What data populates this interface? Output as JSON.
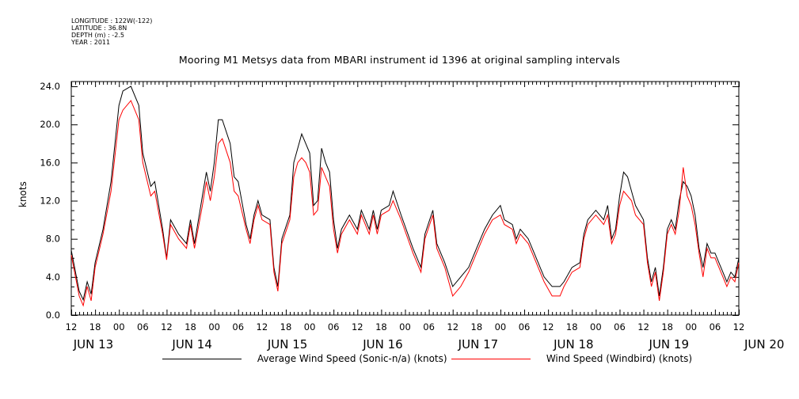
{
  "header": {
    "longitude": "LONGITUDE : 122W(-122)",
    "latitude": "LATITUDE : 36.8N",
    "depth": "DEPTH (m) : -2.5",
    "year": "YEAR : 2011"
  },
  "chart_data": {
    "type": "line",
    "title": "Mooring M1 Metsys data from MBARI instrument id 1396 at original sampling intervals",
    "xlabel": "",
    "ylabel": "knots",
    "ylim": [
      0,
      24.5
    ],
    "yticks": [
      0.0,
      4.0,
      8.0,
      12.0,
      16.0,
      20.0,
      24.0
    ],
    "ytick_labels": [
      "0.0",
      "4.0",
      "8.0",
      "12.0",
      "16.0",
      "20.0",
      "24.0"
    ],
    "xlim_hours": [
      0,
      168
    ],
    "xtick_labels": [
      "12",
      "18",
      "00",
      "06",
      "12",
      "18",
      "00",
      "06",
      "12",
      "18",
      "00",
      "06",
      "12",
      "18",
      "00",
      "06",
      "12",
      "18",
      "00",
      "06",
      "12",
      "18",
      "00",
      "06",
      "12",
      "18",
      "00",
      "06",
      "12"
    ],
    "date_labels": [
      "JUN 13",
      "JUN 14",
      "JUN 15",
      "JUN 16",
      "JUN 17",
      "JUN 18",
      "JUN 19",
      "JUN 20"
    ],
    "grid": false,
    "series": [
      {
        "name": "Average Wind Speed (Sonic-n/a) (knots)",
        "color": "#000000",
        "points": [
          [
            0,
            6.8
          ],
          [
            2,
            2.5
          ],
          [
            3,
            1.6
          ],
          [
            4,
            3.5
          ],
          [
            5,
            2.2
          ],
          [
            6,
            5.5
          ],
          [
            8,
            9
          ],
          [
            10,
            14
          ],
          [
            12,
            22
          ],
          [
            13,
            23.5
          ],
          [
            15,
            24
          ],
          [
            17,
            22
          ],
          [
            18,
            17
          ],
          [
            20,
            13.5
          ],
          [
            21,
            14
          ],
          [
            23,
            9
          ],
          [
            24,
            6
          ],
          [
            25,
            10
          ],
          [
            27,
            8.5
          ],
          [
            29,
            7.5
          ],
          [
            30,
            10
          ],
          [
            31,
            7.5
          ],
          [
            33,
            12.5
          ],
          [
            34,
            15
          ],
          [
            35,
            13
          ],
          [
            36,
            16
          ],
          [
            37,
            20.5
          ],
          [
            38,
            20.5
          ],
          [
            40,
            18
          ],
          [
            41,
            14.5
          ],
          [
            42,
            14
          ],
          [
            44,
            9.5
          ],
          [
            45,
            8
          ],
          [
            46,
            10.5
          ],
          [
            47,
            12
          ],
          [
            48,
            10.5
          ],
          [
            50,
            10
          ],
          [
            51,
            5
          ],
          [
            52,
            3
          ],
          [
            53,
            8
          ],
          [
            55,
            10.5
          ],
          [
            56,
            16
          ],
          [
            57,
            17.5
          ],
          [
            58,
            19
          ],
          [
            59,
            18
          ],
          [
            60,
            17
          ],
          [
            61,
            11.5
          ],
          [
            62,
            12
          ],
          [
            63,
            17.5
          ],
          [
            64,
            16
          ],
          [
            65,
            15
          ],
          [
            66,
            10
          ],
          [
            67,
            7
          ],
          [
            68,
            9
          ],
          [
            70,
            10.5
          ],
          [
            72,
            9
          ],
          [
            73,
            11
          ],
          [
            74,
            10
          ],
          [
            75,
            9
          ],
          [
            76,
            11
          ],
          [
            77,
            9
          ],
          [
            78,
            11
          ],
          [
            80,
            11.5
          ],
          [
            81,
            13
          ],
          [
            83,
            10.5
          ],
          [
            86,
            7
          ],
          [
            88,
            5
          ],
          [
            89,
            8.5
          ],
          [
            91,
            11
          ],
          [
            92,
            7.5
          ],
          [
            94,
            5.5
          ],
          [
            96,
            3
          ],
          [
            98,
            4
          ],
          [
            100,
            5
          ],
          [
            102,
            7
          ],
          [
            104,
            9
          ],
          [
            106,
            10.5
          ],
          [
            108,
            11.5
          ],
          [
            109,
            10
          ],
          [
            111,
            9.5
          ],
          [
            112,
            8
          ],
          [
            113,
            9
          ],
          [
            115,
            8
          ],
          [
            116,
            7
          ],
          [
            118,
            5
          ],
          [
            119,
            4
          ],
          [
            121,
            3
          ],
          [
            123,
            3
          ],
          [
            124,
            3.5
          ],
          [
            126,
            5
          ],
          [
            128,
            5.5
          ],
          [
            129,
            8.5
          ],
          [
            130,
            10
          ],
          [
            132,
            11
          ],
          [
            134,
            10
          ],
          [
            135,
            11.5
          ],
          [
            136,
            8
          ],
          [
            137,
            9
          ],
          [
            138,
            12.5
          ],
          [
            139,
            15
          ],
          [
            140,
            14.5
          ],
          [
            141,
            13
          ],
          [
            142,
            11.5
          ],
          [
            144,
            10
          ],
          [
            145,
            6
          ],
          [
            146,
            3.5
          ],
          [
            147,
            5
          ],
          [
            148,
            2
          ],
          [
            149,
            5
          ],
          [
            150,
            9
          ],
          [
            151,
            10
          ],
          [
            152,
            9
          ],
          [
            153,
            12
          ],
          [
            154,
            14
          ],
          [
            155,
            13.5
          ],
          [
            156,
            12.5
          ],
          [
            157,
            10.5
          ],
          [
            158,
            7
          ],
          [
            159,
            5
          ],
          [
            160,
            7.5
          ],
          [
            161,
            6.5
          ],
          [
            162,
            6.5
          ],
          [
            163,
            5.5
          ],
          [
            164,
            4.5
          ],
          [
            165,
            3.5
          ],
          [
            166,
            4.5
          ],
          [
            167,
            4
          ],
          [
            168,
            6
          ]
        ]
      },
      {
        "name": "Wind Speed (Windbird) (knots)",
        "color": "#ff0000",
        "points": [
          [
            0,
            6.3
          ],
          [
            2,
            2
          ],
          [
            3,
            1
          ],
          [
            4,
            3
          ],
          [
            5,
            1.5
          ],
          [
            6,
            5
          ],
          [
            8,
            8.5
          ],
          [
            10,
            13
          ],
          [
            12,
            20.5
          ],
          [
            13,
            21.5
          ],
          [
            15,
            22.5
          ],
          [
            17,
            20.5
          ],
          [
            18,
            16
          ],
          [
            20,
            12.5
          ],
          [
            21,
            13
          ],
          [
            23,
            8.5
          ],
          [
            24,
            5.8
          ],
          [
            25,
            9.5
          ],
          [
            27,
            8
          ],
          [
            29,
            7
          ],
          [
            30,
            9.5
          ],
          [
            31,
            7
          ],
          [
            33,
            11.5
          ],
          [
            34,
            14
          ],
          [
            35,
            12
          ],
          [
            36,
            14.5
          ],
          [
            37,
            18
          ],
          [
            38,
            18.5
          ],
          [
            40,
            16
          ],
          [
            41,
            13
          ],
          [
            42,
            12.5
          ],
          [
            44,
            9
          ],
          [
            45,
            7.5
          ],
          [
            46,
            10
          ],
          [
            47,
            11.5
          ],
          [
            48,
            10
          ],
          [
            50,
            9.5
          ],
          [
            51,
            4.5
          ],
          [
            52,
            2.5
          ],
          [
            53,
            7.5
          ],
          [
            55,
            10
          ],
          [
            56,
            14.5
          ],
          [
            57,
            16
          ],
          [
            58,
            16.5
          ],
          [
            59,
            16
          ],
          [
            60,
            15
          ],
          [
            61,
            10.5
          ],
          [
            62,
            11
          ],
          [
            63,
            15.5
          ],
          [
            64,
            14.5
          ],
          [
            65,
            13.5
          ],
          [
            66,
            9
          ],
          [
            67,
            6.5
          ],
          [
            68,
            8.5
          ],
          [
            70,
            10
          ],
          [
            72,
            8.5
          ],
          [
            73,
            10.5
          ],
          [
            74,
            9.5
          ],
          [
            75,
            8.5
          ],
          [
            76,
            10.5
          ],
          [
            77,
            8.5
          ],
          [
            78,
            10.5
          ],
          [
            80,
            11
          ],
          [
            81,
            12
          ],
          [
            83,
            10
          ],
          [
            86,
            6.5
          ],
          [
            88,
            4.5
          ],
          [
            89,
            8
          ],
          [
            91,
            10.5
          ],
          [
            92,
            7
          ],
          [
            94,
            5
          ],
          [
            96,
            2
          ],
          [
            98,
            3
          ],
          [
            100,
            4.5
          ],
          [
            102,
            6.5
          ],
          [
            104,
            8.5
          ],
          [
            106,
            10
          ],
          [
            108,
            10.5
          ],
          [
            109,
            9.5
          ],
          [
            111,
            9
          ],
          [
            112,
            7.5
          ],
          [
            113,
            8.5
          ],
          [
            115,
            7.5
          ],
          [
            116,
            6.5
          ],
          [
            118,
            4.5
          ],
          [
            119,
            3.5
          ],
          [
            121,
            2
          ],
          [
            123,
            2
          ],
          [
            124,
            3
          ],
          [
            126,
            4.5
          ],
          [
            128,
            5
          ],
          [
            129,
            8
          ],
          [
            130,
            9.5
          ],
          [
            132,
            10.5
          ],
          [
            134,
            9.5
          ],
          [
            135,
            10.5
          ],
          [
            136,
            7.5
          ],
          [
            137,
            8.5
          ],
          [
            138,
            11.5
          ],
          [
            139,
            13
          ],
          [
            140,
            12.5
          ],
          [
            141,
            12
          ],
          [
            142,
            10.5
          ],
          [
            144,
            9.5
          ],
          [
            145,
            5.5
          ],
          [
            146,
            3
          ],
          [
            147,
            4.5
          ],
          [
            148,
            1.5
          ],
          [
            149,
            4.5
          ],
          [
            150,
            8.5
          ],
          [
            151,
            9.5
          ],
          [
            152,
            8.5
          ],
          [
            153,
            11
          ],
          [
            154,
            15.5
          ],
          [
            155,
            12.5
          ],
          [
            156,
            11.5
          ],
          [
            157,
            9.5
          ],
          [
            158,
            6.5
          ],
          [
            159,
            4
          ],
          [
            160,
            7
          ],
          [
            161,
            6
          ],
          [
            162,
            6
          ],
          [
            163,
            5
          ],
          [
            164,
            4
          ],
          [
            165,
            3
          ],
          [
            166,
            4
          ],
          [
            167,
            3.5
          ],
          [
            168,
            5.5
          ]
        ]
      }
    ],
    "legend": "bottom"
  }
}
